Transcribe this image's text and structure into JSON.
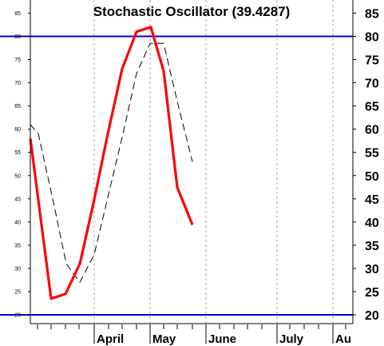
{
  "chart_data": {
    "type": "line",
    "title": "Stochastic Oscillator (39.4287)",
    "ylim": [
      17,
      88
    ],
    "yticks": [
      20,
      25,
      30,
      35,
      40,
      45,
      50,
      55,
      60,
      65,
      70,
      75,
      80,
      85
    ],
    "ytick_labels": [
      "20",
      "25",
      "30",
      "35",
      "40",
      "45",
      "50",
      "55",
      "60",
      "65",
      "70",
      "75",
      "80",
      "85"
    ],
    "x_labels": [
      "April",
      "May",
      "June",
      "July",
      "Au"
    ],
    "reference_lines": [
      20,
      80
    ],
    "grid": "vertical dashed at month boundaries",
    "colors": {
      "k_line": "#ff0000",
      "d_line": "#000000",
      "reference": "#0000cc",
      "grid": "#aaaaaa"
    },
    "series": [
      {
        "name": "",
        "style": "solid-red",
        "values": [
          58,
          23.5,
          24.5,
          31,
          44,
          59,
          73,
          81,
          82,
          72.5,
          47.5,
          39.4
        ]
      },
      {
        "name": "",
        "style": "dashed-black",
        "values": [
          61,
          59,
          45,
          31,
          27,
          33,
          46,
          59,
          72,
          78.5,
          78.5,
          66,
          53
        ]
      }
    ]
  }
}
